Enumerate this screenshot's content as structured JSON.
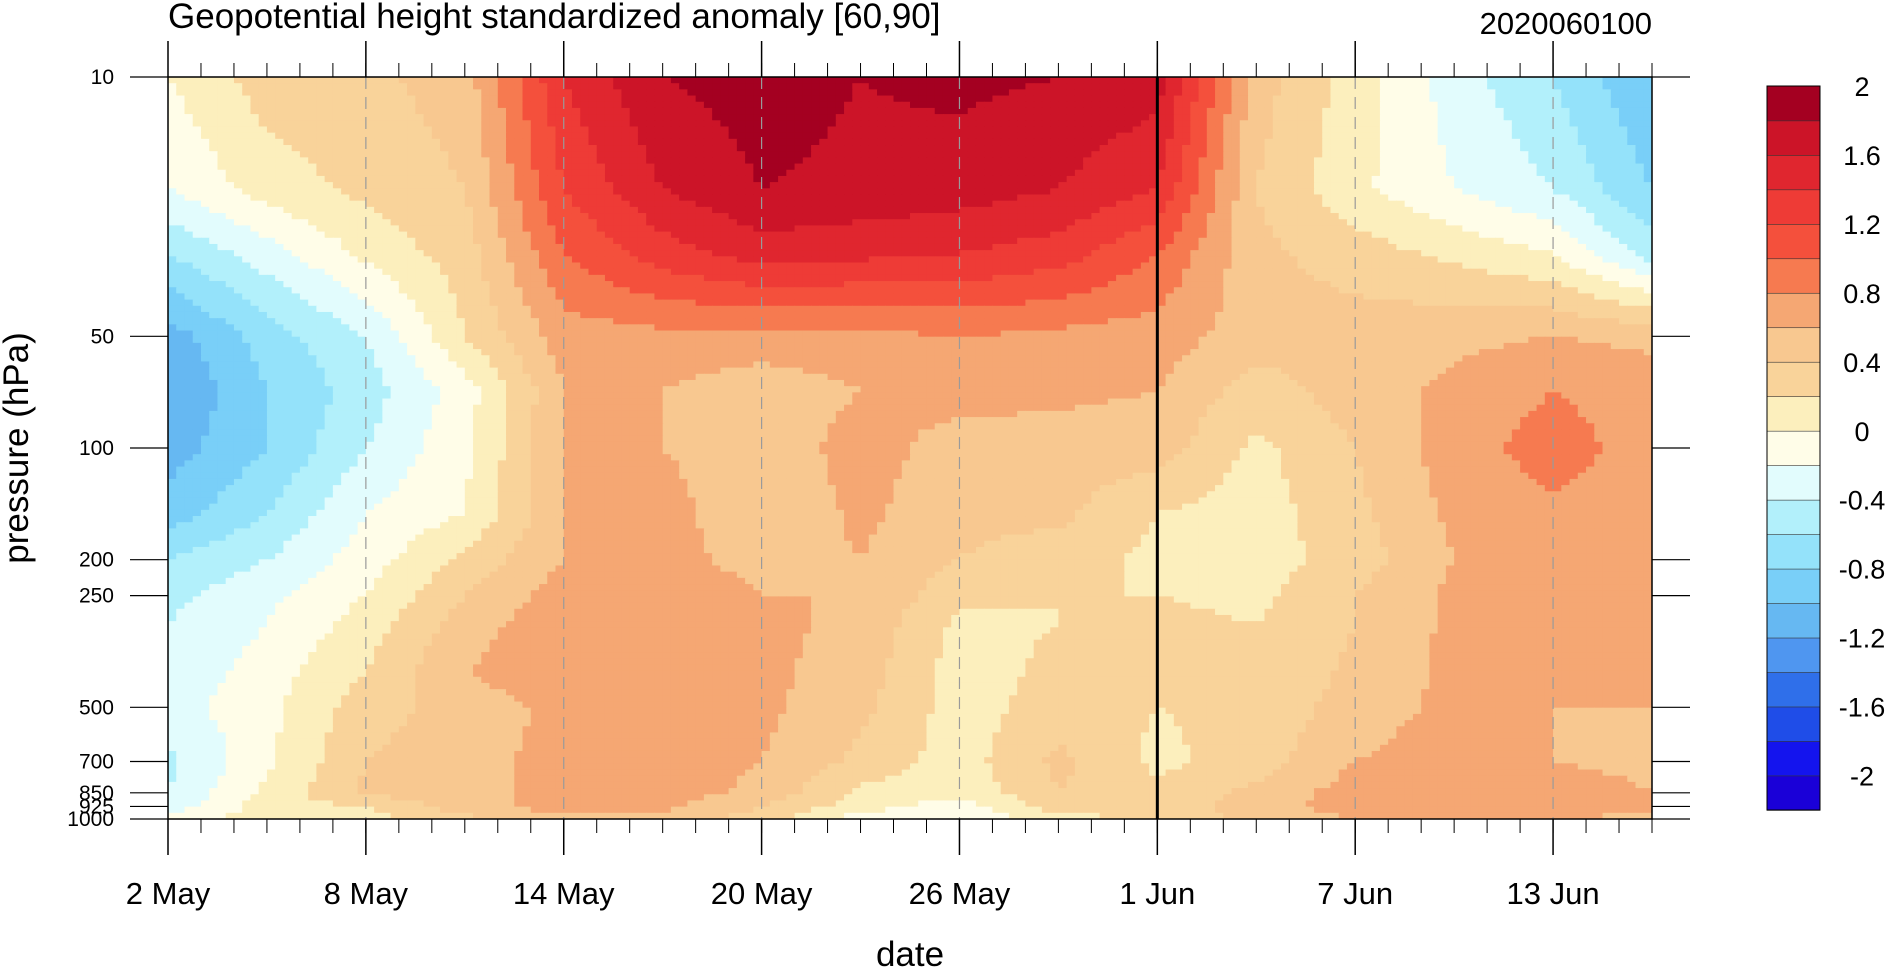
{
  "chart_data": {
    "type": "heatmap",
    "title": "Geopotential height standardized anomaly [60,90]",
    "right_title": "2020060100",
    "xlabel": "date",
    "ylabel": "pressure (hPa)",
    "x_start": "2 May",
    "x_end": "16 Jun",
    "x_ticks": [
      {
        "day": 0,
        "label": "2 May"
      },
      {
        "day": 6,
        "label": "8 May"
      },
      {
        "day": 12,
        "label": "14 May"
      },
      {
        "day": 18,
        "label": "20 May"
      },
      {
        "day": 24,
        "label": "26 May"
      },
      {
        "day": 30,
        "label": "1 Jun"
      },
      {
        "day": 36,
        "label": "7 Jun"
      },
      {
        "day": 42,
        "label": "13 Jun"
      }
    ],
    "minor_tick_days": 1,
    "y_ticks": [
      {
        "p": 10,
        "label": "10"
      },
      {
        "p": 50,
        "label": "50"
      },
      {
        "p": 100,
        "label": "100"
      },
      {
        "p": 200,
        "label": "200"
      },
      {
        "p": 250,
        "label": "250"
      },
      {
        "p": 500,
        "label": "500"
      },
      {
        "p": 700,
        "label": "700"
      },
      {
        "p": 850,
        "label": "850"
      },
      {
        "p": 925,
        "label": "925"
      },
      {
        "p": 1000,
        "label": "1000"
      }
    ],
    "y_scale": "log",
    "ylim": [
      1000,
      10
    ],
    "vertical_marker_day": 30,
    "colorbar": {
      "levels": [
        -2.2,
        -2,
        -1.8,
        -1.6,
        -1.4,
        -1.2,
        -1,
        -0.8,
        -0.6,
        -0.4,
        -0.2,
        0,
        0.2,
        0.4,
        0.6,
        0.8,
        1,
        1.2,
        1.4,
        1.6,
        1.8,
        2,
        2.2
      ],
      "labels": [
        "2",
        "1.6",
        "1.2",
        "0.8",
        "0.4",
        "0",
        "-0.4",
        "-0.8",
        "-1.2",
        "-1.6",
        "-2"
      ],
      "colors": [
        "#1a00d8",
        "#1414ee",
        "#1f4de8",
        "#2f6fea",
        "#4f96f0",
        "#66b8f2",
        "#79cff8",
        "#94e2fa",
        "#b2f0fb",
        "#e2fcfd",
        "#fffde8",
        "#fcefbd",
        "#f9d39a",
        "#f8c890",
        "#f5a773",
        "#f67a50",
        "#f4503c",
        "#ee3b36",
        "#e0262f",
        "#cc1428",
        "#a40021"
      ]
    },
    "days": [
      0,
      3,
      6,
      9,
      12,
      15,
      18,
      21,
      24,
      27,
      30,
      33,
      36,
      39,
      42,
      45
    ],
    "pressures": [
      10,
      20,
      30,
      50,
      70,
      100,
      150,
      200,
      250,
      300,
      400,
      500,
      700,
      850,
      925,
      1000
    ],
    "values": [
      [
        0.0,
        0.3,
        0.35,
        0.5,
        1.4,
        1.8,
        1.9,
        1.8,
        1.85,
        1.8,
        1.7,
        0.5,
        0.1,
        -0.3,
        -0.6,
        -1.0
      ],
      [
        -0.2,
        0.1,
        0.25,
        0.4,
        1.2,
        1.6,
        1.8,
        1.75,
        1.7,
        1.6,
        1.4,
        0.4,
        0.05,
        -0.2,
        -0.4,
        -0.8
      ],
      [
        -0.6,
        -0.3,
        0.05,
        0.3,
        1.0,
        1.3,
        1.5,
        1.45,
        1.4,
        1.3,
        1.0,
        0.45,
        0.3,
        0.15,
        0.0,
        -0.5
      ],
      [
        -1.1,
        -0.7,
        -0.4,
        0.2,
        0.7,
        0.75,
        0.75,
        0.75,
        0.8,
        0.75,
        0.7,
        0.5,
        0.5,
        0.55,
        0.6,
        0.55
      ],
      [
        -1.2,
        -0.8,
        -0.5,
        -0.1,
        0.6,
        0.6,
        0.45,
        0.6,
        0.7,
        0.65,
        0.6,
        0.3,
        0.5,
        0.65,
        0.8,
        0.7
      ],
      [
        -1.1,
        -0.8,
        -0.4,
        -0.05,
        0.6,
        0.6,
        0.45,
        0.7,
        0.5,
        0.5,
        0.5,
        0.15,
        0.4,
        0.7,
        0.9,
        0.7
      ],
      [
        -0.9,
        -0.6,
        -0.2,
        0.0,
        0.6,
        0.7,
        0.4,
        0.65,
        0.45,
        0.45,
        0.2,
        0.1,
        0.35,
        0.65,
        0.75,
        0.7
      ],
      [
        -0.6,
        -0.4,
        -0.1,
        0.25,
        0.6,
        0.7,
        0.5,
        0.6,
        0.4,
        0.3,
        0.15,
        0.1,
        0.3,
        0.6,
        0.7,
        0.65
      ],
      [
        -0.45,
        -0.25,
        0.0,
        0.4,
        0.7,
        0.8,
        0.6,
        0.6,
        0.25,
        0.2,
        0.2,
        0.15,
        0.4,
        0.65,
        0.8,
        0.7
      ],
      [
        -0.4,
        -0.2,
        0.1,
        0.5,
        0.75,
        0.8,
        0.65,
        0.55,
        0.15,
        0.2,
        0.25,
        0.2,
        0.4,
        0.65,
        0.75,
        0.7
      ],
      [
        -0.35,
        -0.1,
        0.2,
        0.6,
        0.75,
        0.75,
        0.65,
        0.5,
        0.1,
        0.25,
        0.3,
        0.2,
        0.45,
        0.65,
        0.7,
        0.65
      ],
      [
        -0.3,
        -0.05,
        0.3,
        0.5,
        0.65,
        0.7,
        0.65,
        0.45,
        0.1,
        0.3,
        0.2,
        0.25,
        0.5,
        0.65,
        0.6,
        0.6
      ],
      [
        -0.45,
        -0.05,
        0.4,
        0.55,
        0.65,
        0.7,
        0.6,
        0.35,
        0.1,
        0.45,
        0.15,
        0.3,
        0.6,
        0.7,
        0.6,
        0.55
      ],
      [
        -0.4,
        0.05,
        0.45,
        0.5,
        0.7,
        0.7,
        0.55,
        0.15,
        0.05,
        0.4,
        0.25,
        0.45,
        0.7,
        0.75,
        0.7,
        0.6
      ],
      [
        -0.3,
        0.1,
        0.2,
        0.5,
        0.7,
        0.65,
        0.4,
        0.1,
        -0.1,
        0.3,
        0.3,
        0.5,
        0.7,
        0.75,
        0.7,
        0.65
      ],
      [
        -0.1,
        0.1,
        0.1,
        0.35,
        0.55,
        0.55,
        0.3,
        -0.1,
        -0.2,
        0.1,
        0.25,
        0.45,
        0.6,
        0.65,
        0.6,
        0.55
      ]
    ]
  }
}
